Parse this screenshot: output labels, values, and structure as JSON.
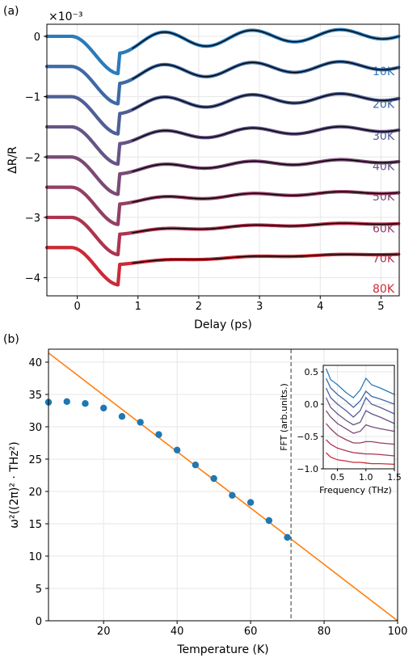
{
  "chart_data": [
    {
      "panel_label": "(a)",
      "type": "line",
      "xlabel": "Delay (ps)",
      "ylabel": "ΔR/R",
      "offset_text": "×10⁻³",
      "xlim": [
        -0.5,
        5.3
      ],
      "ylim": [
        -4.3,
        0.2
      ],
      "xticks": [
        0,
        1,
        2,
        3,
        4,
        5
      ],
      "yticks": [
        0,
        -1,
        -2,
        -3,
        -4
      ],
      "fit_line_color": "#000000",
      "series": [
        {
          "name": "10K",
          "color": "#2b7bba",
          "baseline": 0.0,
          "dip": 0.62,
          "osc_amp": 0.16,
          "label_y": -0.58
        },
        {
          "name": "20K",
          "color": "#3c6aa6",
          "baseline": -0.5,
          "dip": 0.62,
          "osc_amp": 0.14,
          "label_y": -1.12
        },
        {
          "name": "30K",
          "color": "#4f5f96",
          "baseline": -1.0,
          "dip": 0.62,
          "osc_amp": 0.12,
          "label_y": -1.65
        },
        {
          "name": "40K",
          "color": "#655586",
          "baseline": -1.5,
          "dip": 0.62,
          "osc_amp": 0.09,
          "label_y": -2.15
        },
        {
          "name": "50K",
          "color": "#7a4a75",
          "baseline": -2.0,
          "dip": 0.62,
          "osc_amp": 0.06,
          "label_y": -2.65
        },
        {
          "name": "60K",
          "color": "#933f63",
          "baseline": -2.5,
          "dip": 0.62,
          "osc_amp": 0.04,
          "label_y": -3.18
        },
        {
          "name": "70K",
          "color": "#ad3450",
          "baseline": -3.0,
          "dip": 0.62,
          "osc_amp": 0.025,
          "label_y": -3.68
        },
        {
          "name": "80K",
          "color": "#cc2a36",
          "baseline": -3.5,
          "dip": 0.62,
          "osc_amp": 0.015,
          "label_y": -4.18
        }
      ]
    },
    {
      "panel_label": "(b)",
      "type": "scatter",
      "xlabel": "Temperature (K)",
      "ylabel": "ω²((2π)² · THz²)",
      "xlim": [
        5,
        100
      ],
      "ylim": [
        0,
        42
      ],
      "xticks": [
        20,
        40,
        60,
        80,
        100
      ],
      "yticks": [
        0,
        5,
        10,
        15,
        20,
        25,
        30,
        35,
        40
      ],
      "points": {
        "color": "#1f77b4",
        "x": [
          5,
          10,
          15,
          20,
          25,
          30,
          35,
          40,
          45,
          50,
          55,
          60,
          65,
          70
        ],
        "y": [
          33.8,
          33.9,
          33.6,
          32.9,
          31.6,
          30.7,
          28.8,
          26.4,
          24.1,
          22.0,
          19.4,
          18.3,
          15.5,
          12.9
        ]
      },
      "fit_line": {
        "color": "#ff7f0e",
        "x": [
          0,
          100
        ],
        "y": [
          43.6,
          0.0
        ]
      },
      "vline": {
        "x": 71,
        "color": "#555555"
      }
    },
    {
      "type": "line",
      "xlabel": "Frequency (THz)",
      "ylabel": "FFT (arb.units.)",
      "xlim": [
        0.25,
        1.5
      ],
      "ylim": [
        -1.0,
        0.6
      ],
      "xticks": [
        0.5,
        1.0,
        1.5
      ],
      "xtick_labels": [
        "0.5",
        "1.0",
        "1.5"
      ],
      "yticks": [
        0.5,
        0.0,
        -0.5,
        -1.0
      ],
      "ytick_labels": [
        "0.5",
        "0.0",
        "−0.5",
        "−1.0"
      ],
      "series": [
        {
          "color": "#2b7bba",
          "x": [
            0.3,
            0.38,
            0.5,
            0.65,
            0.78,
            0.9,
            1.0,
            1.1,
            1.25,
            1.5
          ],
          "y": [
            0.55,
            0.38,
            0.3,
            0.18,
            0.1,
            0.22,
            0.4,
            0.3,
            0.25,
            0.15
          ]
        },
        {
          "color": "#3c6aa6",
          "x": [
            0.3,
            0.38,
            0.5,
            0.65,
            0.78,
            0.9,
            1.0,
            1.1,
            1.25,
            1.5
          ],
          "y": [
            0.4,
            0.25,
            0.15,
            0.05,
            -0.05,
            0.05,
            0.2,
            0.12,
            0.08,
            0.0
          ]
        },
        {
          "color": "#4f5f96",
          "x": [
            0.3,
            0.38,
            0.5,
            0.65,
            0.78,
            0.9,
            1.0,
            1.1,
            1.25,
            1.5
          ],
          "y": [
            0.25,
            0.1,
            0.0,
            -0.1,
            -0.2,
            -0.1,
            0.1,
            0.0,
            -0.05,
            -0.15
          ]
        },
        {
          "color": "#655586",
          "x": [
            0.3,
            0.38,
            0.5,
            0.65,
            0.78,
            0.9,
            1.0,
            1.1,
            1.25,
            1.5
          ],
          "y": [
            0.1,
            -0.05,
            -0.15,
            -0.25,
            -0.32,
            -0.28,
            -0.1,
            -0.15,
            -0.2,
            -0.3
          ]
        },
        {
          "color": "#7a4a75",
          "x": [
            0.3,
            0.38,
            0.5,
            0.65,
            0.78,
            0.9,
            1.0,
            1.1,
            1.25,
            1.5
          ],
          "y": [
            -0.1,
            -0.2,
            -0.3,
            -0.38,
            -0.45,
            -0.42,
            -0.32,
            -0.35,
            -0.38,
            -0.42
          ]
        },
        {
          "color": "#933f63",
          "x": [
            0.3,
            0.38,
            0.5,
            0.65,
            0.78,
            0.9,
            1.0,
            1.1,
            1.25,
            1.5
          ],
          "y": [
            -0.3,
            -0.38,
            -0.48,
            -0.55,
            -0.6,
            -0.6,
            -0.58,
            -0.58,
            -0.6,
            -0.62
          ]
        },
        {
          "color": "#ad3450",
          "x": [
            0.3,
            0.38,
            0.5,
            0.65,
            0.78,
            0.9,
            1.0,
            1.1,
            1.25,
            1.5
          ],
          "y": [
            -0.55,
            -0.62,
            -0.68,
            -0.72,
            -0.75,
            -0.76,
            -0.77,
            -0.77,
            -0.78,
            -0.8
          ]
        },
        {
          "color": "#cc2a36",
          "x": [
            0.3,
            0.38,
            0.5,
            0.65,
            0.78,
            0.9,
            1.0,
            1.1,
            1.25,
            1.5
          ],
          "y": [
            -0.75,
            -0.82,
            -0.86,
            -0.88,
            -0.9,
            -0.9,
            -0.91,
            -0.92,
            -0.92,
            -0.93
          ]
        }
      ]
    }
  ]
}
